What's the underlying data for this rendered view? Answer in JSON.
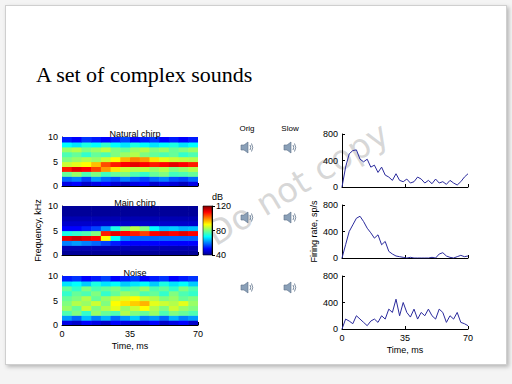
{
  "title": "A set of complex sounds",
  "audio_labels": [
    "Orig",
    "Slow"
  ],
  "watermark": "Do not copy",
  "chart_data": [
    {
      "type": "heatmap",
      "title": "Natural chirp",
      "time_bins": [
        0,
        5,
        10,
        15,
        20,
        25,
        30,
        35,
        40,
        45,
        50,
        55,
        60,
        65,
        70
      ],
      "freq_bins": [
        0,
        1,
        2,
        3,
        4,
        5,
        6,
        7,
        8,
        9,
        10
      ],
      "cells": [
        [
          48,
          50,
          46,
          48,
          50,
          47,
          45,
          48,
          50,
          46,
          48,
          47,
          45,
          48
        ],
        [
          58,
          60,
          55,
          62,
          58,
          56,
          60,
          57,
          55,
          58,
          60,
          56,
          55,
          58
        ],
        [
          78,
          82,
          76,
          80,
          75,
          78,
          80,
          76,
          74,
          78,
          80,
          75,
          76,
          78
        ],
        [
          108,
          112,
          110,
          105,
          98,
          92,
          86,
          84,
          85,
          82,
          84,
          80,
          82,
          84
        ],
        [
          86,
          88,
          90,
          95,
          104,
          108,
          110,
          112,
          110,
          108,
          110,
          112,
          110,
          108
        ],
        [
          80,
          82,
          84,
          82,
          86,
          90,
          96,
          100,
          98,
          92,
          88,
          86,
          85,
          84
        ],
        [
          76,
          78,
          74,
          78,
          76,
          80,
          82,
          84,
          80,
          78,
          76,
          78,
          74,
          76
        ],
        [
          82,
          84,
          80,
          82,
          85,
          80,
          78,
          82,
          84,
          80,
          82,
          78,
          80,
          82
        ],
        [
          70,
          68,
          72,
          70,
          74,
          70,
          68,
          72,
          70,
          68,
          70,
          72,
          68,
          70
        ],
        [
          52,
          50,
          54,
          52,
          50,
          52,
          55,
          50,
          52,
          54,
          50,
          52,
          50,
          52
        ]
      ],
      "xlim": [
        0,
        70
      ],
      "xticks": [
        0,
        35,
        70
      ],
      "ylim": [
        0,
        10
      ],
      "yticks": [
        0,
        5,
        10
      ],
      "tick_labels": "y"
    },
    {
      "type": "heatmap",
      "title": "Main chirp",
      "ylabel": "Frequency, kHz",
      "time_bins": [
        0,
        5,
        10,
        15,
        20,
        25,
        30,
        35,
        40,
        45,
        50,
        55,
        60,
        65,
        70
      ],
      "freq_bins": [
        0,
        1,
        2,
        3,
        4,
        5,
        6,
        7,
        8,
        9,
        10
      ],
      "cells": [
        [
          42,
          42,
          42,
          42,
          42,
          42,
          42,
          42,
          42,
          42,
          42,
          42,
          42,
          42
        ],
        [
          44,
          44,
          44,
          44,
          44,
          44,
          44,
          44,
          44,
          44,
          44,
          44,
          44,
          44
        ],
        [
          60,
          62,
          60,
          58,
          55,
          52,
          50,
          50,
          50,
          50,
          50,
          50,
          50,
          50
        ],
        [
          112,
          114,
          112,
          110,
          90,
          70,
          60,
          58,
          58,
          58,
          58,
          58,
          58,
          58
        ],
        [
          72,
          74,
          76,
          80,
          108,
          112,
          110,
          108,
          105,
          110,
          112,
          110,
          112,
          110
        ],
        [
          50,
          50,
          52,
          55,
          62,
          72,
          80,
          85,
          80,
          70,
          65,
          66,
          64,
          65
        ],
        [
          46,
          46,
          46,
          46,
          46,
          46,
          46,
          46,
          46,
          46,
          46,
          46,
          46,
          46
        ],
        [
          44,
          44,
          44,
          44,
          44,
          44,
          44,
          44,
          44,
          44,
          44,
          44,
          44,
          44
        ],
        [
          42,
          42,
          42,
          42,
          42,
          42,
          42,
          42,
          42,
          42,
          42,
          42,
          42,
          42
        ],
        [
          42,
          42,
          42,
          42,
          42,
          42,
          42,
          42,
          42,
          42,
          42,
          42,
          42,
          42
        ]
      ],
      "xlim": [
        0,
        70
      ],
      "xticks": [
        0,
        35,
        70
      ],
      "ylim": [
        0,
        10
      ],
      "yticks": [
        0,
        5,
        10
      ],
      "tick_labels": "y",
      "colorbar": {
        "label": "dB",
        "range": [
          40,
          120
        ],
        "ticks": [
          40,
          80,
          120
        ]
      }
    },
    {
      "type": "heatmap",
      "title": "Noise",
      "xlabel": "Time, ms",
      "time_bins": [
        0,
        5,
        10,
        15,
        20,
        25,
        30,
        35,
        40,
        45,
        50,
        55,
        60,
        65,
        70
      ],
      "freq_bins": [
        0,
        1,
        2,
        3,
        4,
        5,
        6,
        7,
        8,
        9,
        10
      ],
      "cells": [
        [
          48,
          46,
          50,
          48,
          46,
          50,
          48,
          46,
          48,
          50,
          46,
          48,
          50,
          46
        ],
        [
          62,
          58,
          65,
          60,
          64,
          58,
          62,
          66,
          60,
          62,
          58,
          64,
          60,
          62
        ],
        [
          76,
          80,
          74,
          82,
          78,
          76,
          84,
          80,
          78,
          82,
          76,
          80,
          78,
          76
        ],
        [
          82,
          78,
          86,
          80,
          84,
          88,
          82,
          86,
          90,
          84,
          80,
          86,
          82,
          80
        ],
        [
          80,
          84,
          82,
          86,
          80,
          90,
          92,
          94,
          96,
          88,
          86,
          84,
          88,
          82
        ],
        [
          78,
          80,
          84,
          78,
          82,
          86,
          88,
          90,
          86,
          84,
          80,
          82,
          78,
          80
        ],
        [
          74,
          78,
          76,
          80,
          74,
          78,
          82,
          80,
          76,
          78,
          74,
          80,
          76,
          74
        ],
        [
          78,
          74,
          80,
          76,
          78,
          80,
          76,
          78,
          82,
          76,
          78,
          74,
          80,
          76
        ],
        [
          68,
          70,
          66,
          72,
          68,
          70,
          66,
          68,
          70,
          66,
          72,
          68,
          70,
          66
        ],
        [
          52,
          54,
          50,
          52,
          55,
          50,
          52,
          54,
          50,
          52,
          54,
          50,
          52,
          54
        ]
      ],
      "xlim": [
        0,
        70
      ],
      "xticks": [
        0,
        35,
        70
      ],
      "ylim": [
        0,
        10
      ],
      "yticks": [
        0,
        5,
        10
      ]
    },
    {
      "type": "line",
      "color": "#2a2a9c",
      "x": [
        0,
        2,
        4,
        6,
        8,
        10,
        12,
        14,
        16,
        18,
        20,
        22,
        24,
        26,
        28,
        30,
        32,
        34,
        36,
        38,
        40,
        42,
        44,
        46,
        48,
        50,
        52,
        54,
        56,
        58,
        60,
        62,
        64,
        66,
        68,
        70
      ],
      "values": [
        0,
        300,
        500,
        550,
        560,
        420,
        380,
        420,
        300,
        330,
        220,
        300,
        180,
        150,
        100,
        200,
        100,
        80,
        120,
        60,
        80,
        150,
        120,
        60,
        100,
        50,
        120,
        60,
        80,
        40,
        100,
        60,
        30,
        80,
        150,
        200
      ],
      "xlim": [
        0,
        70
      ],
      "xticks": [
        0,
        35,
        70
      ],
      "ylim": [
        0,
        800
      ],
      "yticks": [
        0,
        400,
        800
      ],
      "tick_labels": "y"
    },
    {
      "type": "line",
      "color": "#2a2a9c",
      "ylabel": "Firing rate, sp/s",
      "x": [
        0,
        2,
        4,
        6,
        8,
        10,
        12,
        14,
        16,
        18,
        20,
        22,
        24,
        26,
        28,
        30,
        32,
        34,
        36,
        38,
        40,
        42,
        44,
        46,
        48,
        50,
        52,
        54,
        56,
        58,
        60,
        62,
        64,
        66,
        68,
        70
      ],
      "values": [
        0,
        200,
        400,
        500,
        600,
        630,
        550,
        450,
        380,
        300,
        350,
        200,
        250,
        100,
        60,
        30,
        20,
        10,
        0,
        10,
        0,
        0,
        0,
        0,
        0,
        10,
        0,
        60,
        80,
        30,
        10,
        0,
        20,
        40,
        20,
        30
      ],
      "xlim": [
        0,
        70
      ],
      "xticks": [
        0,
        35,
        70
      ],
      "ylim": [
        0,
        800
      ],
      "yticks": [
        0,
        400,
        800
      ],
      "tick_labels": "y"
    },
    {
      "type": "line",
      "color": "#2a2a9c",
      "xlabel": "Time, ms",
      "x": [
        0,
        2,
        4,
        6,
        8,
        10,
        12,
        14,
        16,
        18,
        20,
        22,
        24,
        26,
        28,
        30,
        32,
        34,
        36,
        38,
        40,
        42,
        44,
        46,
        48,
        50,
        52,
        54,
        56,
        58,
        60,
        62,
        64,
        66,
        68,
        70
      ],
      "values": [
        0,
        150,
        120,
        80,
        200,
        150,
        100,
        50,
        120,
        150,
        100,
        200,
        150,
        300,
        250,
        450,
        200,
        400,
        250,
        180,
        300,
        150,
        250,
        200,
        300,
        200,
        150,
        300,
        250,
        100,
        200,
        150,
        250,
        100,
        80,
        50
      ],
      "xlim": [
        0,
        70
      ],
      "xticks": [
        0,
        35,
        70
      ],
      "ylim": [
        0,
        800
      ],
      "yticks": [
        0,
        400,
        800
      ]
    }
  ]
}
